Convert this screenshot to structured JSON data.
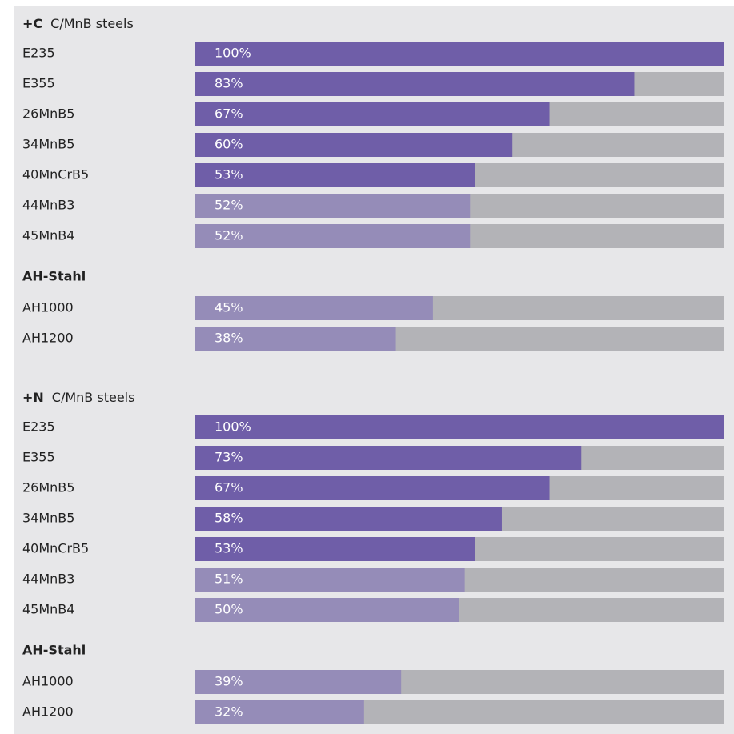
{
  "chart_data": [
    {
      "type": "bar",
      "title_prefix": "+C",
      "title": "C/MnB steels",
      "xlim": [
        0,
        100
      ],
      "track_color": "#b3b3b7",
      "groups": [
        {
          "categories": [
            "E235",
            "E355",
            "26MnB5",
            "34MnB5",
            "40MnCrB5",
            "44MnB3",
            "45MnB4"
          ],
          "values": [
            100,
            83,
            67,
            60,
            53,
            52,
            52
          ],
          "value_labels": [
            "100%",
            "83%",
            "67%",
            "60%",
            "53%",
            "52%",
            "52%"
          ],
          "colors": [
            "#6f5ea8",
            "#6f5ea8",
            "#6f5ea8",
            "#6f5ea8",
            "#6f5ea8",
            "#958cb8",
            "#958cb8"
          ]
        },
        {
          "title": "AH-Stahl",
          "categories": [
            "AH1000",
            "AH1200"
          ],
          "values": [
            45,
            38
          ],
          "value_labels": [
            "45%",
            "38%"
          ],
          "colors": [
            "#958cb8",
            "#958cb8"
          ]
        }
      ]
    },
    {
      "type": "bar",
      "title_prefix": "+N",
      "title": "C/MnB steels",
      "xlim": [
        0,
        100
      ],
      "track_color": "#b3b3b7",
      "groups": [
        {
          "categories": [
            "E235",
            "E355",
            "26MnB5",
            "34MnB5",
            "40MnCrB5",
            "44MnB3",
            "45MnB4"
          ],
          "values": [
            100,
            73,
            67,
            58,
            53,
            51,
            50
          ],
          "value_labels": [
            "100%",
            "73%",
            "67%",
            "58%",
            "53%",
            "51%",
            "50%"
          ],
          "colors": [
            "#6f5ea8",
            "#6f5ea8",
            "#6f5ea8",
            "#6f5ea8",
            "#6f5ea8",
            "#958cb8",
            "#958cb8"
          ]
        },
        {
          "title": "AH-Stahl",
          "categories": [
            "AH1000",
            "AH1200"
          ],
          "values": [
            39,
            32
          ],
          "value_labels": [
            "39%",
            "32%"
          ],
          "colors": [
            "#958cb8",
            "#958cb8"
          ]
        }
      ]
    }
  ]
}
